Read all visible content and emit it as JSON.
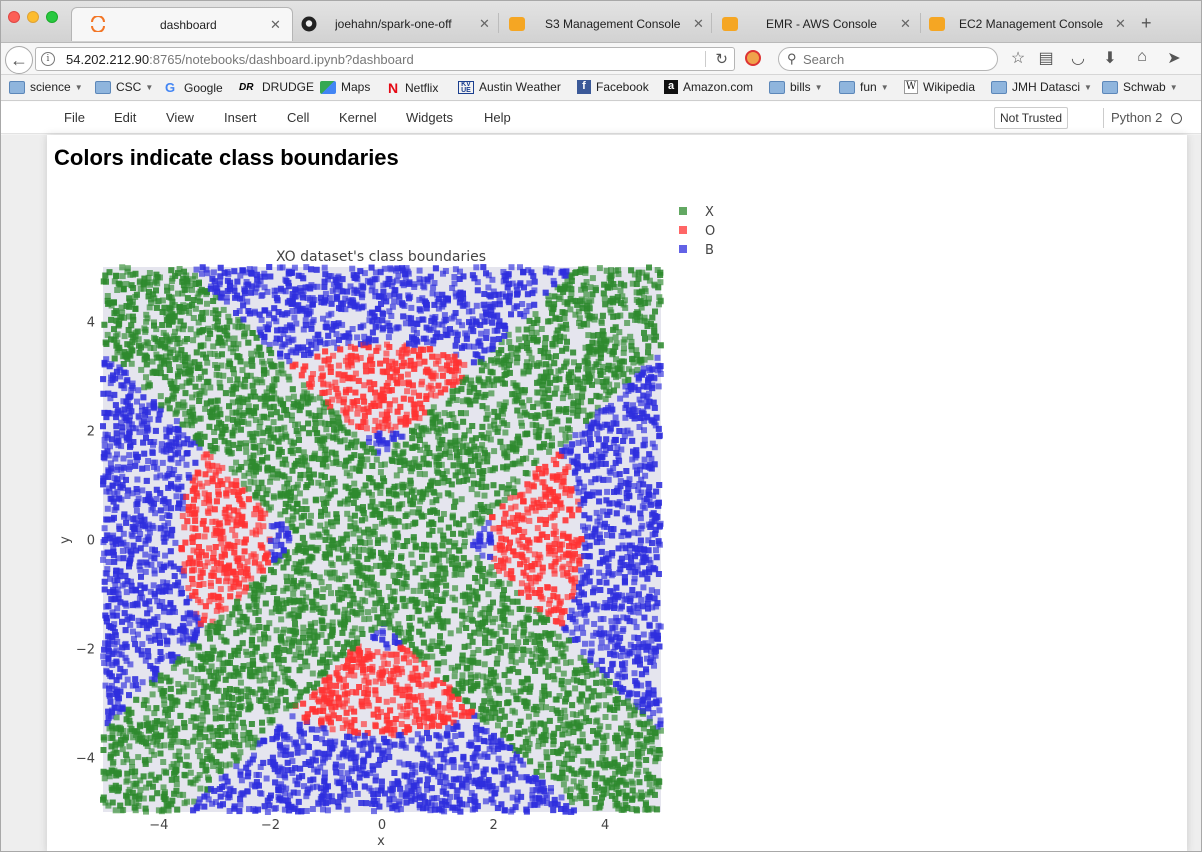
{
  "tabs": [
    {
      "label": "dashboard",
      "icon": "jupyter-icon",
      "active": true
    },
    {
      "label": "joehahn/spark-one-off",
      "icon": "github-icon",
      "active": false
    },
    {
      "label": "S3 Management Console",
      "icon": "aws-icon",
      "active": false
    },
    {
      "label": "EMR - AWS Console",
      "icon": "aws-icon",
      "active": false
    },
    {
      "label": "EC2 Management Console",
      "icon": "aws-icon",
      "active": false
    }
  ],
  "url": {
    "host": "54.202.212.90",
    "rest": ":8765/notebooks/dashboard.ipynb?dashboard"
  },
  "search": {
    "placeholder": "Search"
  },
  "bookmarks": [
    {
      "label": "science",
      "type": "folder"
    },
    {
      "label": "CSC",
      "type": "folder"
    },
    {
      "label": "Google",
      "type": "google"
    },
    {
      "label": "DRUDGE",
      "type": "drudge"
    },
    {
      "label": "Maps",
      "type": "maps"
    },
    {
      "label": "Netflix",
      "type": "netflix"
    },
    {
      "label": "Austin Weather",
      "type": "kvue"
    },
    {
      "label": "Facebook",
      "type": "facebook"
    },
    {
      "label": "Amazon.com",
      "type": "amazon"
    },
    {
      "label": "bills",
      "type": "folder"
    },
    {
      "label": "fun",
      "type": "folder"
    },
    {
      "label": "Wikipedia",
      "type": "wikipedia"
    },
    {
      "label": "JMH Datasci",
      "type": "folder"
    },
    {
      "label": "Schwab",
      "type": "folder"
    }
  ],
  "jupyter": {
    "menu": [
      "File",
      "Edit",
      "View",
      "Insert",
      "Cell",
      "Kernel",
      "Widgets",
      "Help"
    ],
    "trust_label": "Not Trusted",
    "kernel": "Python 2"
  },
  "notebook": {
    "heading": "Colors indicate class boundaries"
  },
  "chart_data": {
    "type": "scatter",
    "title": "XO dataset's class boundaries",
    "xlabel": "x",
    "ylabel": "y",
    "xlim": [
      -5,
      5
    ],
    "ylim": [
      -5,
      5
    ],
    "xticks": [
      -4,
      -2,
      0,
      2,
      4
    ],
    "yticks": [
      -4,
      -2,
      0,
      2,
      4
    ],
    "legend_position": "top-right outside plot",
    "background": "#e5e5ee",
    "series": [
      {
        "name": "X",
        "color": "#2e8b2e",
        "region": "|x - y| < 1.5 or |x + y| < 1.5 (two diagonal bands through origin)"
      },
      {
        "name": "O",
        "color": "#ff3333",
        "region": "2 <= sqrt(x^2 + y^2) <= 3.6, outside the X bands (ring)"
      },
      {
        "name": "B",
        "color": "#2e2edd",
        "region": "all remaining points"
      }
    ],
    "approx_points": 12000
  }
}
